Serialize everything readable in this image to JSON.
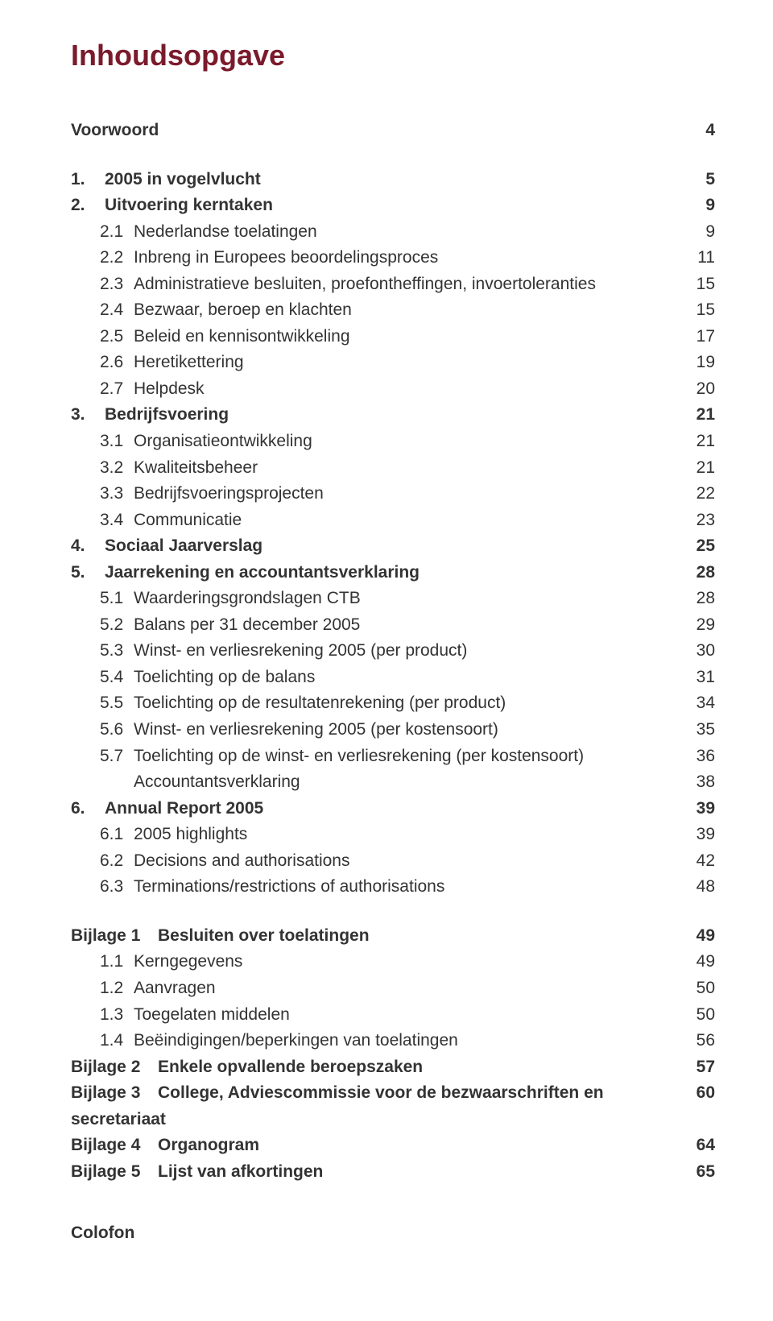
{
  "colors": {
    "title": "#7a1a2b",
    "body": "#333333",
    "background": "#ffffff"
  },
  "typography": {
    "title_fontsize_pt": 27,
    "body_fontsize_pt": 16,
    "line_height": 1.55,
    "font_family": "Segoe UI / Helvetica Neue / Arial (sans-serif)"
  },
  "title": "Inhoudsopgave",
  "toc": [
    {
      "type": "top",
      "bold": true,
      "num": "",
      "text": "Voorwoord",
      "page": "4",
      "gap_before": false
    },
    {
      "type": "top",
      "bold": true,
      "num": "1.",
      "text": "2005 in vogelvlucht",
      "page": "5",
      "gap_before": true
    },
    {
      "type": "top",
      "bold": true,
      "num": "2.",
      "text": "Uitvoering kerntaken",
      "page": "9"
    },
    {
      "type": "sub",
      "num": "2.1",
      "text": "Nederlandse toelatingen",
      "page": "9"
    },
    {
      "type": "sub",
      "num": "2.2",
      "text": "Inbreng in Europees beoordelingsproces",
      "page": "11"
    },
    {
      "type": "sub",
      "num": "2.3",
      "text": "Administratieve besluiten, proefontheffingen, invoertoleranties",
      "page": "15"
    },
    {
      "type": "sub",
      "num": "2.4",
      "text": "Bezwaar, beroep en klachten",
      "page": "15"
    },
    {
      "type": "sub",
      "num": "2.5",
      "text": "Beleid en kennisontwikkeling",
      "page": "17"
    },
    {
      "type": "sub",
      "num": "2.6",
      "text": "Heretikettering",
      "page": "19"
    },
    {
      "type": "sub",
      "num": "2.7",
      "text": "Helpdesk",
      "page": "20"
    },
    {
      "type": "top",
      "bold": true,
      "num": "3.",
      "text": "Bedrijfsvoering",
      "page": "21"
    },
    {
      "type": "sub",
      "num": "3.1",
      "text": "Organisatieontwikkeling",
      "page": "21"
    },
    {
      "type": "sub",
      "num": "3.2",
      "text": "Kwaliteitsbeheer",
      "page": "21"
    },
    {
      "type": "sub",
      "num": "3.3",
      "text": "Bedrijfsvoeringsprojecten",
      "page": "22"
    },
    {
      "type": "sub",
      "num": "3.4",
      "text": "Communicatie",
      "page": "23"
    },
    {
      "type": "top",
      "bold": true,
      "num": "4.",
      "text": "Sociaal Jaarverslag",
      "page": "25"
    },
    {
      "type": "top",
      "bold": true,
      "num": "5.",
      "text": "Jaarrekening en accountantsverklaring",
      "page": "28"
    },
    {
      "type": "sub",
      "num": "5.1",
      "text": "Waarderingsgrondslagen CTB",
      "page": "28"
    },
    {
      "type": "sub",
      "num": "5.2",
      "text": "Balans per 31 december 2005",
      "page": "29"
    },
    {
      "type": "sub",
      "num": "5.3",
      "text": "Winst- en verliesrekening 2005 (per product)",
      "page": "30"
    },
    {
      "type": "sub",
      "num": "5.4",
      "text": "Toelichting op de balans",
      "page": "31"
    },
    {
      "type": "sub",
      "num": "5.5",
      "text": "Toelichting op de resultatenrekening (per product)",
      "page": "34"
    },
    {
      "type": "sub",
      "num": "5.6",
      "text": "Winst- en verliesrekening 2005 (per kostensoort)",
      "page": "35"
    },
    {
      "type": "sub",
      "num": "5.7",
      "text": "Toelichting op de winst- en verliesrekening (per kostensoort)",
      "page": "36"
    },
    {
      "type": "sub",
      "num": "",
      "text": "Accountantsverklaring",
      "page": "38"
    },
    {
      "type": "top",
      "bold": true,
      "num": "6.",
      "text": "Annual Report 2005",
      "page": "39"
    },
    {
      "type": "sub",
      "num": "6.1",
      "text": "2005 highlights",
      "page": "39"
    },
    {
      "type": "sub",
      "num": "6.2",
      "text": "Decisions and authorisations",
      "page": "42"
    },
    {
      "type": "sub",
      "num": "6.3",
      "text": "Terminations/restrictions of authorisations",
      "page": "48"
    },
    {
      "type": "bij",
      "bold": true,
      "prefix": "Bijlage 1",
      "text": "Besluiten over toelatingen",
      "page": "49",
      "gap_before": true
    },
    {
      "type": "sub",
      "num": "1.1",
      "text": "Kerngegevens",
      "page": "49"
    },
    {
      "type": "sub",
      "num": "1.2",
      "text": "Aanvragen",
      "page": "50"
    },
    {
      "type": "sub",
      "num": "1.3",
      "text": "Toegelaten middelen",
      "page": "50"
    },
    {
      "type": "sub",
      "num": "1.4",
      "text": "Beëindigingen/beperkingen van toelatingen",
      "page": "56"
    },
    {
      "type": "bij",
      "bold": true,
      "prefix": "Bijlage 2",
      "text": "Enkele opvallende beroepszaken",
      "page": "57"
    },
    {
      "type": "bij",
      "bold": true,
      "prefix": "Bijlage 3",
      "text": "College, Adviescommissie voor de bezwaarschriften en secretariaat",
      "page": "60"
    },
    {
      "type": "bij",
      "bold": true,
      "prefix": "Bijlage 4",
      "text": "Organogram",
      "page": "64"
    },
    {
      "type": "bij",
      "bold": true,
      "prefix": "Bijlage 5",
      "text": "Lijst van afkortingen",
      "page": "65"
    }
  ],
  "colofon": "Colofon"
}
